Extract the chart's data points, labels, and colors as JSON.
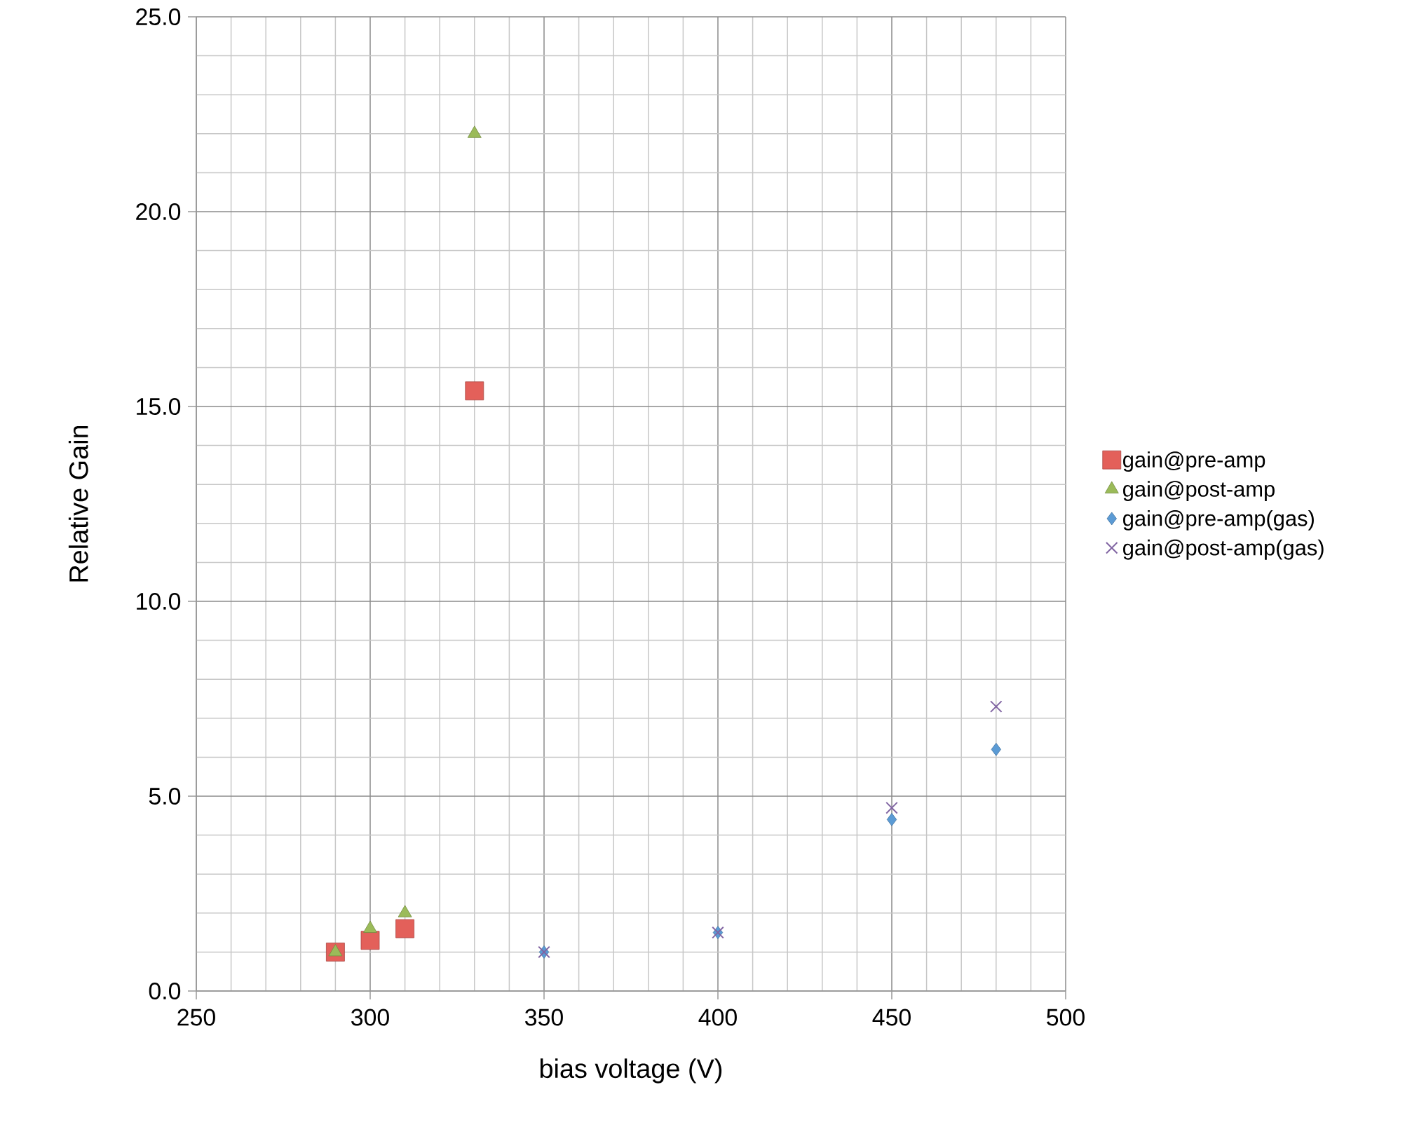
{
  "chart_data": {
    "type": "scatter",
    "xlabel": "bias voltage  (V)",
    "ylabel": "Relative Gain",
    "xlim": [
      250,
      500
    ],
    "xticks": [
      250,
      300,
      350,
      400,
      450,
      500
    ],
    "ylim": [
      0,
      25
    ],
    "yticks": [
      {
        "value": 0,
        "label": "0.0"
      },
      {
        "value": 5,
        "label": "5.0"
      },
      {
        "value": 10,
        "label": "10.0"
      },
      {
        "value": 15,
        "label": "15.0"
      },
      {
        "value": 20,
        "label": "20.0"
      },
      {
        "value": 25,
        "label": "25.0"
      }
    ],
    "grid": true,
    "legend": "right",
    "series": [
      {
        "name": "gain@pre-amp",
        "color": "#e3605a",
        "marker": "square",
        "x": [
          290,
          300,
          310,
          330
        ],
        "values": [
          1.0,
          1.3,
          1.6,
          15.4
        ]
      },
      {
        "name": "gain@post-amp",
        "color": "#9bbb59",
        "marker": "triangle",
        "x": [
          290,
          300,
          310,
          330
        ],
        "values": [
          1.0,
          1.6,
          2.0,
          22.0
        ]
      },
      {
        "name": "gain@pre-amp(gas)",
        "color": "#5b9bd5",
        "marker": "diamond",
        "x": [
          350,
          400,
          450,
          480
        ],
        "values": [
          1.0,
          1.5,
          4.4,
          6.2
        ]
      },
      {
        "name": "gain@post-amp(gas)",
        "color": "#8064a2",
        "marker": "cross",
        "x": [
          350,
          400,
          450,
          480
        ],
        "values": [
          1.0,
          1.5,
          4.7,
          7.3
        ]
      }
    ]
  }
}
